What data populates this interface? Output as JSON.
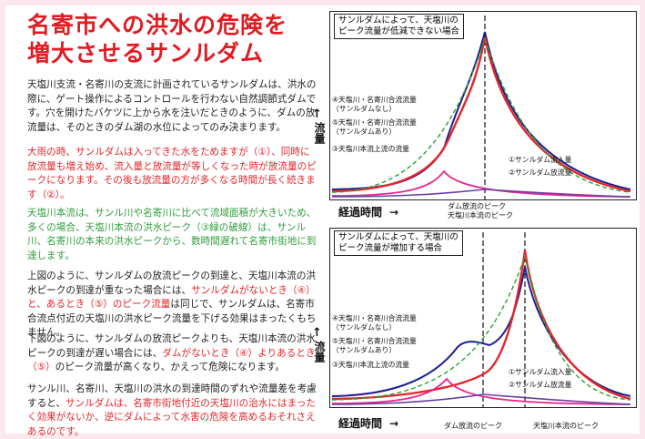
{
  "title": [
    "名寄市への洪水の危険を",
    "増大させるサンルダム"
  ],
  "paragraphs": {
    "p1": "天塩川支流・名寄川の支流に計画されているサンルダムは、洪水の際に、ゲート操作によるコントロールを行わない自然調節式ダムです。穴を開けたバケツに上から水を注いだときのように、ダムの放流量は、そのときのダム湖の水位によってのみ決まります。",
    "p2": "大雨の時、サンルダムは入ってきた水をためますが（①）、同時に放流量も増え始め、流入量と放流量が等しくなった時が放流量のピークになります。その後も放流量の方が多くなる時間が長く続きます（②）。",
    "p3": "天塩川本流は、サンル川や名寄川に比べて流域面積が大きいため、多くの場合、天塩川本流の洪水ピーク（③緑の破線）は、サンル川、名寄川の本来の洪水ピークから、数時間遅れて名寄市街地に到達します。",
    "p4a": "上図のように、サンルダムの放流ピークの到達と、天塩川本流の洪水ピークの到達が重なった場合には、",
    "p4b": "サンルダムがないとき（④）と、あるとき（⑤）のピーク流量",
    "p4c": "は同じで、サンルダムは、名寄市合流点付近の天塩川の洪水ピーク流量を下げる効果はまったくもちません。",
    "p5a": "下図のように、サンルダムの放流ピークよりも、天塩川本流の洪水ピークの到達が遅い場合には、",
    "p5b": "ダムがないとき（④）よりあるとき（⑤）",
    "p5c": "のピーク流量が高くなり、かえって危険になります。",
    "p6a": "サンル川、名寄川、天塩川の洪水の到達時間のずれや流量差を考慮すると、",
    "p6b": "サンルダムは、名寄市街地付近の天塩川の治水にはまったく効果がないか、逆にダムによって水害の危険を高めるおそれさえあるのです。"
  },
  "charts": [
    {
      "note": [
        "サンルダムによって、天塩川の",
        "ピーク流量が低減できない場合"
      ],
      "labels": {
        "l4": [
          "④天塩川・名寄川合流流量",
          "（サンルダムなし）"
        ],
        "l5": [
          "⑤天塩川・名寄川合流流量",
          "（サンルダムあり）"
        ],
        "l3": "③天塩川本流上流の流量",
        "l1": "①サンルダム流入量",
        "l2": "②サンルダム放流量"
      },
      "y_axis": "流量",
      "x_axis": "経過時間",
      "peak_labels": [
        "ダム放流のピーク",
        "天塩川本流のピーク"
      ]
    },
    {
      "note": [
        "サンルダムによって、天塩川の",
        "ピーク流量が増加する場合"
      ],
      "labels": {
        "l4": [
          "④天塩川・名寄川合流流量",
          "（サンルダムなし）"
        ],
        "l5": [
          "⑤天塩川・名寄川合流流量",
          "（サンルダムあり）"
        ],
        "l3": "③天塩川本流上流の流量",
        "l1": "①サンルダム流入量",
        "l2": "②サンルダム放流量"
      },
      "y_axis": "流量",
      "x_axis": "経過時間",
      "peak_labels": [
        "ダム放流のピーク",
        "天塩川本流のピーク"
      ]
    }
  ],
  "colors": {
    "title": "#e11b22",
    "red_text": "#e3262b",
    "green_text": "#2f9e3b",
    "combined_without_dam": "#1b1f8f",
    "combined_with_dam": "#e3262b",
    "main_upstream": "#2f9e3b",
    "dam_inflow": "#e8268c",
    "dam_outflow": "#6a3fa0"
  }
}
